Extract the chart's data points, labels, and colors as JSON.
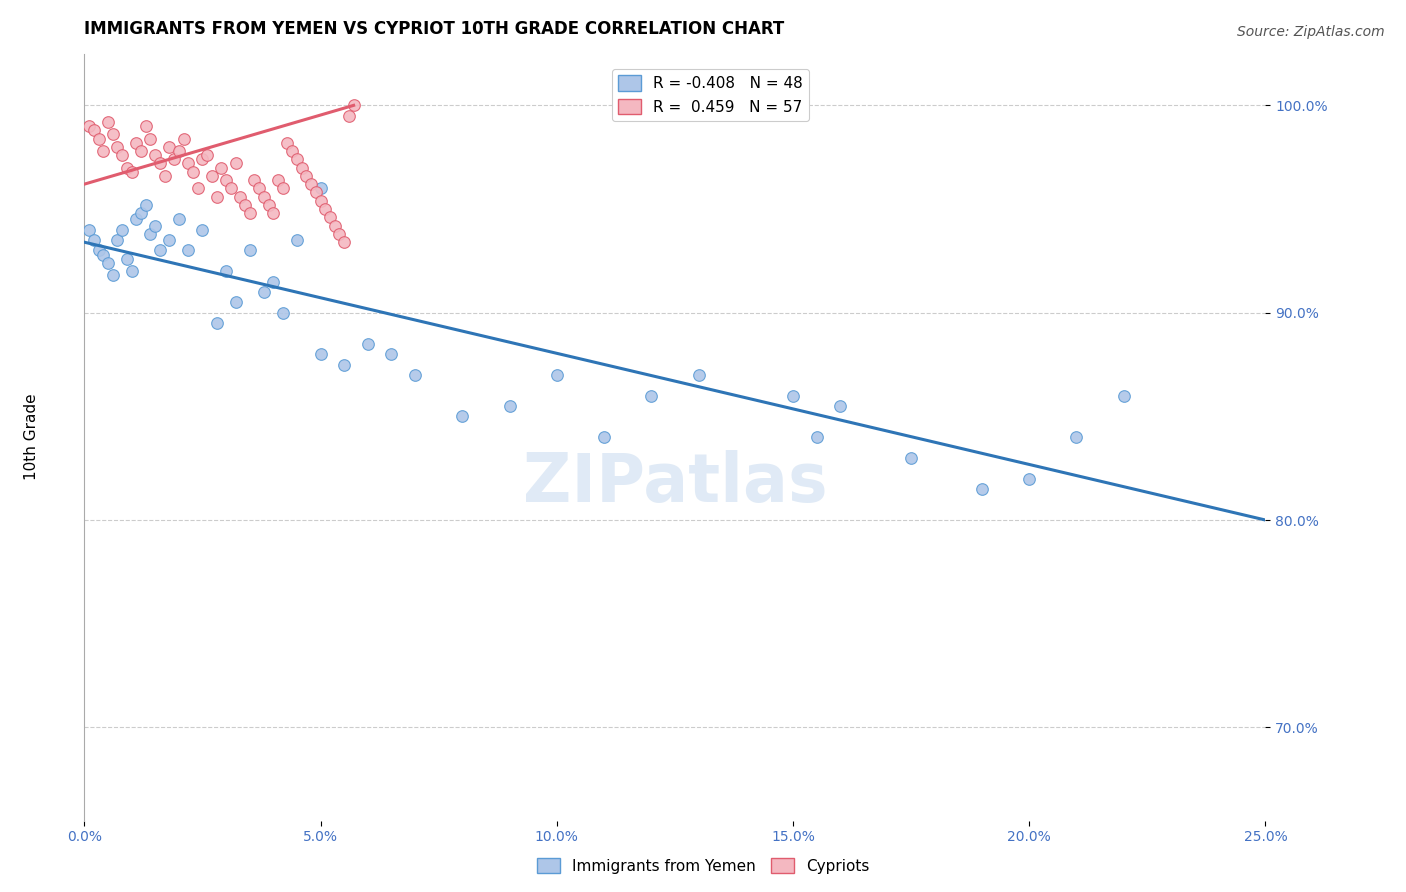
{
  "title": "IMMIGRANTS FROM YEMEN VS CYPRIOT 10TH GRADE CORRELATION CHART",
  "source": "Source: ZipAtlas.com",
  "ylabel": "10th Grade",
  "watermark": "ZIPatlas",
  "xlim": [
    0.0,
    0.25
  ],
  "ylim": [
    0.655,
    1.025
  ],
  "xticks": [
    0.0,
    0.05,
    0.1,
    0.15,
    0.2,
    0.25
  ],
  "yticks": [
    0.7,
    0.8,
    0.9,
    1.0
  ],
  "xticklabels": [
    "0.0%",
    "5.0%",
    "10.0%",
    "15.0%",
    "20.0%",
    "25.0%"
  ],
  "yticklabels": [
    "70.0%",
    "80.0%",
    "90.0%",
    "100.0%"
  ],
  "legend_entries": [
    {
      "label": "R = -0.408   N = 48",
      "color": "#aec6e8"
    },
    {
      "label": "R =  0.459   N = 57",
      "color": "#f4b8c1"
    }
  ],
  "blue_scatter_x": [
    0.001,
    0.002,
    0.003,
    0.004,
    0.005,
    0.006,
    0.007,
    0.008,
    0.009,
    0.01,
    0.011,
    0.012,
    0.013,
    0.014,
    0.015,
    0.016,
    0.018,
    0.02,
    0.022,
    0.025,
    0.03,
    0.035,
    0.04,
    0.045,
    0.05,
    0.055,
    0.065,
    0.07,
    0.08,
    0.09,
    0.1,
    0.11,
    0.12,
    0.13,
    0.15,
    0.155,
    0.16,
    0.175,
    0.19,
    0.2,
    0.21,
    0.22,
    0.05,
    0.06,
    0.038,
    0.042,
    0.028,
    0.032
  ],
  "blue_scatter_y": [
    0.94,
    0.935,
    0.93,
    0.928,
    0.924,
    0.918,
    0.935,
    0.94,
    0.926,
    0.92,
    0.945,
    0.948,
    0.952,
    0.938,
    0.942,
    0.93,
    0.935,
    0.945,
    0.93,
    0.94,
    0.92,
    0.93,
    0.915,
    0.935,
    0.88,
    0.875,
    0.88,
    0.87,
    0.85,
    0.855,
    0.87,
    0.84,
    0.86,
    0.87,
    0.86,
    0.84,
    0.855,
    0.83,
    0.815,
    0.82,
    0.84,
    0.86,
    0.96,
    0.885,
    0.91,
    0.9,
    0.895,
    0.905
  ],
  "pink_scatter_x": [
    0.001,
    0.002,
    0.003,
    0.004,
    0.005,
    0.006,
    0.007,
    0.008,
    0.009,
    0.01,
    0.011,
    0.012,
    0.013,
    0.014,
    0.015,
    0.016,
    0.017,
    0.018,
    0.019,
    0.02,
    0.021,
    0.022,
    0.023,
    0.024,
    0.025,
    0.026,
    0.027,
    0.028,
    0.029,
    0.03,
    0.031,
    0.032,
    0.033,
    0.034,
    0.035,
    0.036,
    0.037,
    0.038,
    0.039,
    0.04,
    0.041,
    0.042,
    0.043,
    0.044,
    0.045,
    0.046,
    0.047,
    0.048,
    0.049,
    0.05,
    0.051,
    0.052,
    0.053,
    0.054,
    0.055,
    0.056,
    0.057
  ],
  "pink_scatter_y": [
    0.99,
    0.988,
    0.984,
    0.978,
    0.992,
    0.986,
    0.98,
    0.976,
    0.97,
    0.968,
    0.982,
    0.978,
    0.99,
    0.984,
    0.976,
    0.972,
    0.966,
    0.98,
    0.974,
    0.978,
    0.984,
    0.972,
    0.968,
    0.96,
    0.974,
    0.976,
    0.966,
    0.956,
    0.97,
    0.964,
    0.96,
    0.972,
    0.956,
    0.952,
    0.948,
    0.964,
    0.96,
    0.956,
    0.952,
    0.948,
    0.964,
    0.96,
    0.982,
    0.978,
    0.974,
    0.97,
    0.966,
    0.962,
    0.958,
    0.954,
    0.95,
    0.946,
    0.942,
    0.938,
    0.934,
    0.995,
    1.0
  ],
  "blue_line_x": [
    0.0,
    0.25
  ],
  "blue_line_y": [
    0.934,
    0.8
  ],
  "pink_line_x": [
    0.0,
    0.057
  ],
  "pink_line_y": [
    0.962,
    1.0
  ],
  "blue_color": "#aec6e8",
  "blue_edge": "#5b9bd5",
  "pink_color": "#f4b8c1",
  "pink_edge": "#e05c6e",
  "blue_line_color": "#2e75b6",
  "pink_line_color": "#e05c6e",
  "grid_color": "#cccccc",
  "bg_color": "#ffffff",
  "tick_color": "#4472c4",
  "watermark_color": "#ccddf0",
  "scatter_size": 70,
  "title_fontsize": 12,
  "tick_fontsize": 10,
  "source_fontsize": 10,
  "watermark_fontsize": 48,
  "line_width": 2.2
}
